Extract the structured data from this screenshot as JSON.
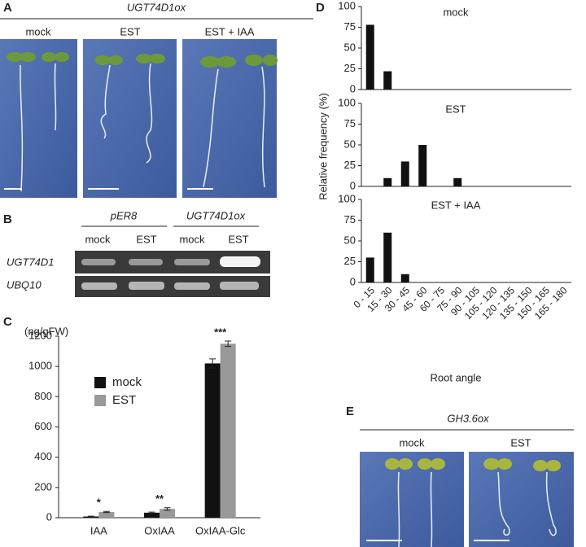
{
  "panels": {
    "A": {
      "label": "A",
      "title": "UGT74D1ox",
      "columns": [
        "mock",
        "EST",
        "EST + IAA"
      ]
    },
    "B": {
      "label": "B",
      "groups": [
        "pER8",
        "UGT74D1ox"
      ],
      "columns": [
        "mock",
        "EST",
        "mock",
        "EST"
      ],
      "rows": [
        "UGT74D1",
        "UBQ10"
      ]
    },
    "E": {
      "label": "E",
      "title": "GH3.6ox",
      "columns": [
        "mock",
        "EST"
      ]
    }
  },
  "chart_data": [
    {
      "type": "bar",
      "panel_label": "C",
      "ylabel": "(ng/gFW)",
      "categories": [
        "IAA",
        "OxIAA",
        "OxIAA-Glc"
      ],
      "series": [
        {
          "name": "mock",
          "color": "#111111",
          "values": [
            8,
            33,
            1020
          ],
          "errors": [
            2,
            4,
            30
          ]
        },
        {
          "name": "EST",
          "color": "#999999",
          "values": [
            38,
            58,
            1150
          ],
          "errors": [
            4,
            8,
            18
          ]
        }
      ],
      "annotations": [
        "*",
        "**",
        "***"
      ],
      "ylim": [
        0,
        1200
      ],
      "yticks": [
        0,
        200,
        400,
        600,
        800,
        1000,
        1200
      ]
    },
    {
      "type": "panels",
      "panel_label": "D",
      "ylabel": "Relative frequency (%)",
      "xlabel": "Root angle",
      "color": "#111111",
      "categories": [
        "0 - 15",
        "15 - 30",
        "30 - 45",
        "45 - 60",
        "60 - 75",
        "75 - 90",
        "90 - 105",
        "105 - 120",
        "120 - 135",
        "135 - 150",
        "150 - 165",
        "165 - 180"
      ],
      "series": [
        {
          "name": "mock",
          "values": [
            78,
            22,
            0,
            0,
            0,
            0,
            0,
            0,
            0,
            0,
            0,
            0
          ]
        },
        {
          "name": "EST",
          "values": [
            0,
            10,
            30,
            50,
            0,
            10,
            0,
            0,
            0,
            0,
            0,
            0
          ]
        },
        {
          "name": "EST + IAA",
          "values": [
            30,
            60,
            10,
            0,
            0,
            0,
            0,
            0,
            0,
            0,
            0,
            0
          ]
        }
      ],
      "ylim": [
        0,
        100
      ],
      "yticks": [
        0,
        25,
        50,
        75,
        100
      ]
    }
  ]
}
